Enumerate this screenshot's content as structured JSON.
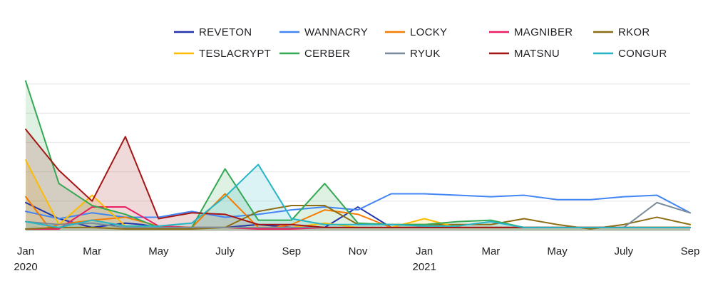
{
  "chart_data": {
    "type": "line",
    "title": "",
    "xlabel": "",
    "ylabel": "",
    "grid": true,
    "legend_position": "top",
    "x": [
      "2020-01",
      "2020-02",
      "2020-03",
      "2020-04",
      "2020-05",
      "2020-06",
      "2020-07",
      "2020-08",
      "2020-09",
      "2020-10",
      "2020-11",
      "2020-12",
      "2021-01",
      "2021-02",
      "2021-03",
      "2021-04",
      "2021-05",
      "2021-06",
      "2021-07",
      "2021-08",
      "2021-09"
    ],
    "x_tick_labels": [
      {
        "x": "2020-01",
        "label": "Jan",
        "sublabel": "2020"
      },
      {
        "x": "2020-03",
        "label": "Mar",
        "sublabel": ""
      },
      {
        "x": "2020-05",
        "label": "May",
        "sublabel": ""
      },
      {
        "x": "2020-07",
        "label": "July",
        "sublabel": ""
      },
      {
        "x": "2020-09",
        "label": "Sep",
        "sublabel": ""
      },
      {
        "x": "2020-11",
        "label": "Nov",
        "sublabel": ""
      },
      {
        "x": "2021-01",
        "label": "Jan",
        "sublabel": "2021"
      },
      {
        "x": "2021-03",
        "label": "Mar",
        "sublabel": ""
      },
      {
        "x": "2021-05",
        "label": "May",
        "sublabel": ""
      },
      {
        "x": "2021-07",
        "label": "July",
        "sublabel": ""
      },
      {
        "x": "2021-09",
        "label": "Sep",
        "sublabel": ""
      }
    ],
    "ylim": [
      0,
      50
    ],
    "y_gridlines": [
      0,
      10,
      20,
      30,
      40,
      50
    ],
    "series": [
      {
        "name": "REVETON",
        "color": "#2233aa",
        "fill": false,
        "x": [
          0,
          1,
          2,
          3,
          3.5,
          4,
          5,
          6,
          7,
          8,
          9,
          10,
          11,
          12,
          13,
          14,
          15,
          16,
          17,
          18,
          19,
          20
        ],
        "values": [
          9.5,
          4,
          1,
          2.5,
          2,
          1,
          1,
          1,
          2,
          1,
          1,
          8,
          1,
          1,
          1,
          1,
          1,
          1,
          1,
          1,
          1,
          1
        ]
      },
      {
        "name": "WANNACRY",
        "color": "#4285f4",
        "fill": false,
        "x": [
          0,
          1,
          2,
          3,
          4,
          5,
          6,
          7,
          8,
          9,
          10,
          11,
          12,
          13,
          14,
          15,
          16,
          17,
          18,
          19,
          20
        ],
        "values": [
          6.5,
          4,
          6,
          4.5,
          4.5,
          6.5,
          4.5,
          5.5,
          7,
          8,
          7,
          12.5,
          12.5,
          12,
          11.5,
          12,
          10.5,
          10.5,
          11.5,
          12,
          6
        ]
      },
      {
        "name": "LOCKY",
        "color": "#f57c00",
        "fill": false,
        "x": [
          0,
          0.7,
          1,
          2,
          3,
          4,
          5,
          6,
          7,
          7.5,
          8,
          9,
          10,
          11,
          12,
          13,
          14,
          15,
          16,
          17,
          18,
          19,
          20
        ],
        "values": [
          11.5,
          1,
          2,
          3.5,
          4.5,
          1.5,
          1,
          12.5,
          1,
          1,
          2,
          7,
          5.5,
          1,
          1,
          1,
          1,
          1,
          1,
          1,
          1,
          1,
          1
        ]
      },
      {
        "name": "MAGNIBER",
        "color": "#e91e63",
        "fill": false,
        "x": [
          0,
          1,
          2,
          3,
          4,
          5,
          6,
          7,
          8,
          9,
          10,
          11,
          12,
          13,
          14,
          15,
          16,
          17,
          18,
          19,
          20
        ],
        "values": [
          0.5,
          0.5,
          8,
          8,
          1.5,
          1,
          1,
          0.5,
          0.5,
          1,
          1,
          1,
          1,
          1,
          1,
          1,
          1,
          1,
          1,
          1,
          1
        ]
      },
      {
        "name": "RKOR",
        "color": "#8d6e14",
        "fill": false,
        "x": [
          0,
          1,
          2,
          3,
          4,
          5,
          6,
          7,
          8,
          9,
          10,
          11,
          12,
          13,
          14,
          15,
          16,
          17,
          18,
          19,
          20
        ],
        "values": [
          0.5,
          1,
          1,
          0.5,
          0.5,
          0.5,
          1,
          6.5,
          8.5,
          8.5,
          2,
          2,
          2,
          2,
          2,
          4,
          2,
          0.5,
          2,
          4.5,
          2
        ]
      },
      {
        "name": "TESLACRYPT",
        "color": "#fbbc04",
        "fill": true,
        "x": [
          0,
          1,
          2,
          3,
          4,
          5,
          6,
          7,
          8,
          9,
          10,
          11,
          12,
          13,
          14,
          15,
          16,
          17,
          18,
          19,
          20
        ],
        "values": [
          24,
          2,
          12,
          1.5,
          1,
          1,
          1,
          1,
          1,
          2.5,
          1,
          1,
          4,
          1,
          1,
          1,
          1,
          1,
          1,
          1,
          1
        ]
      },
      {
        "name": "CERBER",
        "color": "#34a853",
        "fill": true,
        "x": [
          0,
          1,
          2,
          3,
          4,
          5,
          6,
          7,
          8,
          9,
          10,
          11,
          12,
          13,
          14,
          15,
          16,
          17,
          18,
          19,
          20
        ],
        "values": [
          51,
          16,
          8.5,
          5.5,
          1,
          1,
          21,
          3.5,
          3.5,
          16,
          2.5,
          2,
          2,
          3,
          3.5,
          1,
          1,
          1,
          1,
          1,
          1
        ]
      },
      {
        "name": "RYUK",
        "color": "#7a8c9c",
        "fill": false,
        "x": [
          0,
          1,
          2,
          3,
          4,
          5,
          6,
          7,
          8,
          9,
          10,
          11,
          12,
          13,
          14,
          15,
          16,
          17,
          18,
          19,
          20
        ],
        "values": [
          3,
          2,
          2.5,
          1,
          1,
          1,
          1,
          1,
          1,
          1,
          1,
          1,
          1,
          1,
          1,
          1,
          1,
          1,
          1,
          9.5,
          6
        ]
      },
      {
        "name": "MATSNU",
        "color": "#a31515",
        "fill": true,
        "x": [
          0,
          1,
          2,
          3,
          4,
          5,
          6,
          7,
          8,
          9,
          10,
          11,
          12,
          13,
          14,
          15,
          16,
          17,
          18,
          19,
          20
        ],
        "values": [
          34.5,
          20.5,
          10,
          32,
          4,
          6,
          5.5,
          2,
          2,
          1,
          1,
          1,
          1,
          1,
          1,
          1,
          1,
          1,
          1,
          1,
          1
        ]
      },
      {
        "name": "CONGUR",
        "color": "#26b5c5",
        "fill": true,
        "x": [
          0,
          1,
          2,
          3,
          4,
          5,
          6,
          7,
          8,
          9,
          10,
          11,
          12,
          13,
          14,
          15,
          16,
          17,
          18,
          19,
          20
        ],
        "values": [
          3,
          1,
          3.5,
          1.5,
          1.5,
          2.5,
          11.5,
          22.5,
          4,
          2,
          2,
          2,
          1.5,
          1.5,
          3,
          1,
          1,
          1,
          1,
          1,
          1
        ]
      }
    ]
  }
}
